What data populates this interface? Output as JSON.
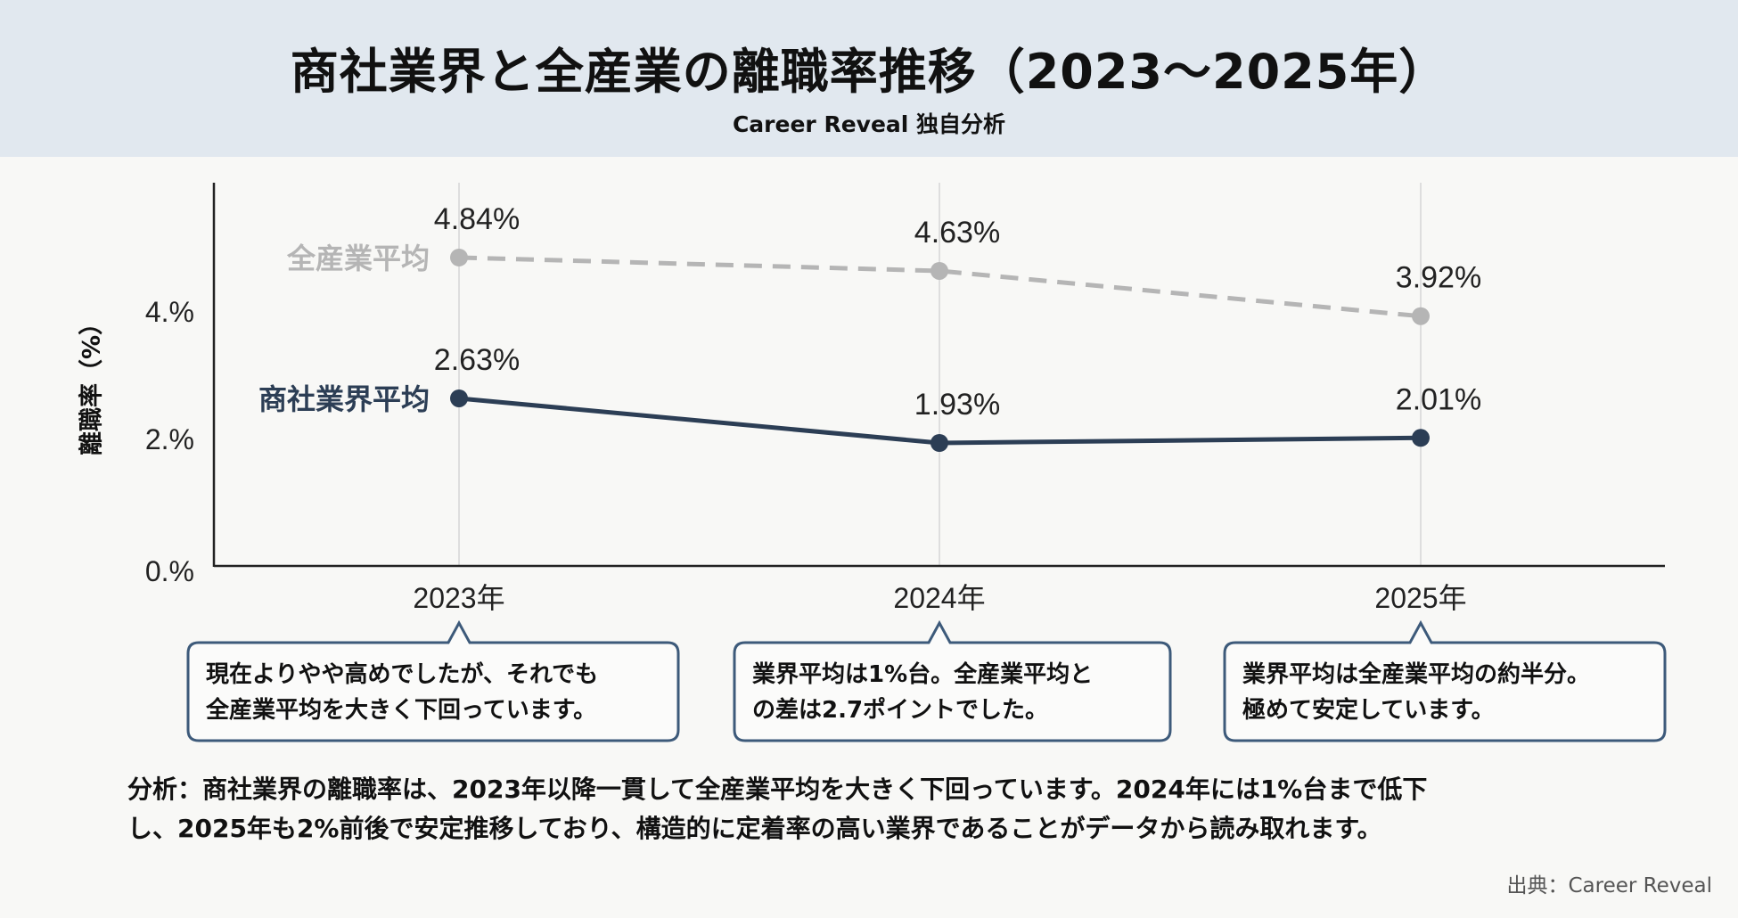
{
  "header": {
    "title": "商社業界と全産業の離職率推移（2023〜2025年）",
    "subtitle": "Career Reveal 独自分析"
  },
  "chart_data": {
    "type": "line",
    "title": "商社業界と全産業の離職率推移（2023〜2025年）",
    "ylabel": "離職率（%）",
    "xlabel": "",
    "categories": [
      "2023年",
      "2024年",
      "2025年"
    ],
    "yticks": [
      {
        "value": 0,
        "label": "0.%"
      },
      {
        "value": 2,
        "label": "2.%"
      },
      {
        "value": 4,
        "label": "4.%"
      }
    ],
    "ylim": [
      0,
      6
    ],
    "grid": "vertical",
    "series": [
      {
        "name": "全産業平均",
        "values": [
          4.84,
          4.63,
          3.92
        ],
        "labels": [
          "4.84%",
          "4.63%",
          "3.92%"
        ],
        "color": "#b5b5b5",
        "style": "dashed"
      },
      {
        "name": "商社業界平均",
        "values": [
          2.63,
          1.93,
          2.01
        ],
        "labels": [
          "2.63%",
          "1.93%",
          "2.01%"
        ],
        "color": "#2c3e55",
        "style": "solid"
      }
    ]
  },
  "callouts": [
    {
      "year": "2023年",
      "lines": [
        "現在よりやや高めでしたが、それでも",
        "全産業平均を大きく下回っています。"
      ]
    },
    {
      "year": "2024年",
      "lines": [
        "業界平均は1%台。全産業平均と",
        "の差は2.7ポイントでした。"
      ]
    },
    {
      "year": "2025年",
      "lines": [
        "業界平均は全産業平均の約半分。",
        "極めて安定しています。"
      ]
    }
  ],
  "analysis": {
    "lines": [
      "分析：商社業界の離職率は、2023年以降一貫して全産業平均を大きく下回っています。2024年には1%台まで低下",
      "し、2025年も2%前後で安定推移しており、構造的に定着率の高い業界であることがデータから読み取れます。"
    ]
  },
  "source": "出典：Career Reveal",
  "colors": {
    "header_bg": "#e1e8ef",
    "callout_border": "#3d5a7a"
  }
}
